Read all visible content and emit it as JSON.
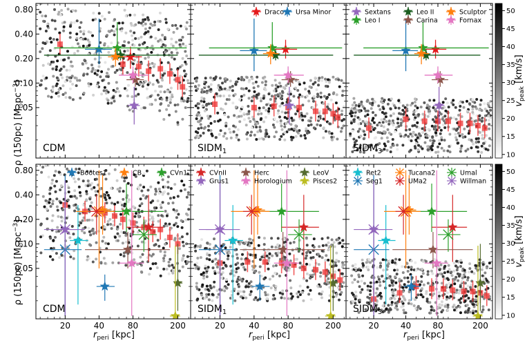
{
  "chart_data": {
    "type": "scatter",
    "title": "",
    "xlabel": "r_peri [kpc]",
    "ylabel": "ρ(150pc) [M⊙pc⁻³]",
    "x_axis": {
      "scale": "log",
      "range_kpc": [
        11,
        260
      ],
      "ticks": [
        20,
        40,
        80,
        200
      ]
    },
    "y_axis": {
      "scale": "log",
      "range": [
        0.012,
        0.95
      ],
      "ticks": [
        0.05,
        0.1,
        0.2,
        0.4,
        0.8
      ],
      "tick_labels": [
        "0.05",
        "0.10",
        "0.20",
        "0.40",
        "0.80"
      ]
    },
    "colorbar": {
      "label": "v_peak [km/s]",
      "range": [
        9,
        52
      ],
      "ticks": [
        10,
        15,
        20,
        25,
        30,
        35,
        40,
        45,
        50
      ]
    },
    "panel_labels": {
      "cdm": "CDM",
      "sidm1": "SIDM",
      "sidm1_sub": "1",
      "sidm3": "SIDM",
      "sidm3_sub": "3"
    },
    "axis_text": {
      "ylabel_main": "ρ (150pc) [M",
      "ylabel_sun": "⊙",
      "ylabel_unit": "pc",
      "ylabel_exp": "−3",
      "ylabel_close": "]",
      "xlabel_main": "r",
      "xlabel_sub": "peri",
      "xlabel_unit": " [kpc]",
      "cbar_main": "v",
      "cbar_sub": "peak",
      "cbar_unit": " [km/s]"
    },
    "legend_top": [
      "Draco",
      "Ursa Minor",
      "Sextans",
      "Leo I",
      "Leo II",
      "Carina",
      "Sculptor",
      "Fornax"
    ],
    "legend_bottom": [
      "Bootes1",
      "CB",
      "CVn1",
      "CVnII",
      "Grus1",
      "Herc",
      "Horologium",
      "LeoV",
      "Pisces2",
      "Ret2",
      "Seg1",
      "Tucana2",
      "UMa2",
      "Umal",
      "Willman"
    ],
    "colors": {
      "Draco": "#e41a1c",
      "Ursa Minor": "#1f77b4",
      "Sextans": "#9467bd",
      "Leo I": "#2ca02c",
      "Leo II": "#1b5e20",
      "Carina": "#8c564b",
      "Sculptor": "#ff7f0e",
      "Fornax": "#e377c2",
      "Bootes1": "#1f77b4",
      "CB": "#ff7f0e",
      "CVn1": "#2ca02c",
      "CVnII": "#d62728",
      "Grus1": "#9467bd",
      "Herc": "#8c564b",
      "Horologium": "#e377c2",
      "LeoV": "#556b2f",
      "Pisces2": "#bcbd22",
      "Ret2": "#17becf",
      "Seg1": "#1f77b4",
      "Tucana2": "#ff7f0e",
      "UMa2": "#d62728",
      "Umal": "#2ca02c",
      "Willman": "#9467bd",
      "model": "#ee3333"
    },
    "classical": {
      "Draco": {
        "x": [
          76,
          60,
          96
        ],
        "cdm": [
          0.21,
          0.15,
          0.28
        ],
        "sidm1": [
          0.26,
          0.2,
          0.34
        ],
        "sidm3": [
          0.26,
          0.2,
          0.34
        ],
        "marker": "star"
      },
      "Ursa Minor": {
        "x": [
          40,
          30,
          52
        ],
        "cdm": [
          0.26,
          0.17,
          0.62
        ],
        "sidm1": [
          0.25,
          0.14,
          0.62
        ],
        "sidm3": [
          0.25,
          0.14,
          0.62
        ],
        "marker": "star"
      },
      "Sextans": {
        "x": [
          82,
          72,
          92
        ],
        "cdm": [
          0.053,
          0.031,
          0.09
        ],
        "sidm1": [
          0.053,
          0.031,
          0.09
        ],
        "sidm3": [
          0.053,
          0.031,
          0.09
        ],
        "marker": "star"
      },
      "Leo I": {
        "x": [
          58,
          16,
          240
        ],
        "cdm": [
          0.27,
          0.22,
          0.56
        ],
        "sidm1": [
          0.27,
          0.22,
          0.56
        ],
        "sidm3": [
          0.27,
          0.22,
          0.56
        ],
        "marker": "star"
      },
      "Leo II": {
        "x": [
          62,
          13,
          200
        ],
        "cdm": [
          0.22,
          0.19,
          0.26
        ],
        "sidm1": [
          0.22,
          0.19,
          0.26
        ],
        "sidm3": [
          0.22,
          0.19,
          0.26
        ],
        "marker": "star"
      },
      "Carina": {
        "x": [
          84,
          70,
          100
        ],
        "cdm": [
          0.11,
          0.09,
          0.14
        ],
        "sidm1": [
          0.11,
          0.09,
          0.14
        ],
        "sidm3": [
          0.11,
          0.09,
          0.14
        ],
        "marker": "star"
      },
      "Sculptor": {
        "x": [
          56,
          48,
          66
        ],
        "cdm": [
          0.21,
          0.16,
          0.27
        ],
        "sidm1": [
          0.23,
          0.17,
          0.3
        ],
        "sidm3": [
          0.23,
          0.17,
          0.3
        ],
        "marker": "star"
      },
      "Fornax": {
        "x": [
          80,
          60,
          110
        ],
        "cdm": [
          0.125,
          0.1,
          0.16
        ],
        "sidm1": [
          0.125,
          0.1,
          0.16
        ],
        "sidm3": [
          0.125,
          0.1,
          0.16
        ],
        "marker": "star"
      }
    },
    "ultrafaint": {
      "Bootes1": {
        "x": [
          45,
          38,
          55
        ],
        "y": [
          0.03,
          0.02,
          0.042
        ],
        "marker": "star"
      },
      "CB": {
        "x": [
          43,
          36,
          50
        ],
        "y": [
          0.26,
          0.13,
          0.7
        ],
        "marker": "star"
      },
      "CVn1": {
        "x": [
          70,
          40,
          150
        ],
        "y": [
          0.25,
          0.14,
          0.55
        ],
        "marker": "star"
      },
      "CVnII": {
        "x": [
          110,
          70,
          150
        ],
        "y": [
          0.16,
          0.06,
          0.4
        ],
        "marker": "star"
      },
      "Grus1": {
        "x": [
          20,
          15,
          26
        ],
        "y": [
          0.15,
          0.013,
          0.6
        ],
        "marker": "star"
      },
      "Herc": {
        "x": [
          72,
          30,
          170
        ],
        "y": [
          0.085,
          0.05,
          0.14
        ],
        "marker": "star"
      },
      "Horologium": {
        "x": [
          78,
          60,
          100
        ],
        "y": [
          0.058,
          0.013,
          0.8
        ],
        "marker": "star"
      },
      "LeoV": {
        "x": [
          200,
          185,
          220
        ],
        "y": [
          0.033,
          0.015,
          0.1
        ],
        "marker": "star"
      },
      "Pisces2": {
        "x": [
          190,
          170,
          210
        ],
        "y": [
          0.013,
          0.013,
          0.095
        ],
        "marker": "star"
      },
      "Ret2": {
        "x": [
          26,
          22,
          32
        ],
        "y": [
          0.11,
          0.018,
          0.3
        ],
        "marker": "star"
      },
      "Seg1": {
        "x": [
          20,
          13,
          28
        ],
        "y": [
          0.085,
          0.013,
          0.7
        ],
        "marker": "x"
      },
      "Tucana2": {
        "x": [
          40,
          25,
          55
        ],
        "y": [
          0.25,
          0.05,
          0.8
        ],
        "marker": "x"
      },
      "UMa2": {
        "x": [
          38,
          32,
          44
        ],
        "y": [
          0.25,
          0.13,
          0.4
        ],
        "marker": "x"
      },
      "Umal": {
        "x": [
          100,
          80,
          130
        ],
        "y": [
          0.13,
          0.08,
          0.2
        ],
        "marker": "x"
      },
      "Willman": {
        "x": [
          20,
          13,
          30
        ],
        "y": [
          0.15,
          0.013,
          0.6
        ],
        "marker": "x"
      }
    },
    "model_points": {
      "top_cdm": {
        "x": [
          18,
          65,
          90,
          110,
          140,
          170,
          200,
          220
        ],
        "y": [
          0.3,
          0.17,
          0.16,
          0.14,
          0.15,
          0.13,
          0.11,
          0.09
        ]
      },
      "top_sidm1": {
        "x": [
          18,
          40,
          60,
          80,
          100,
          140,
          170,
          200,
          220
        ],
        "y": [
          0.055,
          0.05,
          0.052,
          0.05,
          0.05,
          0.045,
          0.045,
          0.042,
          0.038
        ]
      },
      "top_sidm3": {
        "x": [
          18,
          40,
          60,
          80,
          100,
          130,
          160,
          190,
          220
        ],
        "y": [
          0.028,
          0.036,
          0.034,
          0.034,
          0.034,
          0.032,
          0.032,
          0.03,
          0.028
        ]
      },
      "bot_cdm": {
        "x": [
          20,
          30,
          45,
          55,
          65,
          80,
          100,
          120,
          140,
          170,
          200
        ],
        "y": [
          0.3,
          0.25,
          0.24,
          0.22,
          0.2,
          0.18,
          0.16,
          0.14,
          0.15,
          0.12,
          0.1
        ]
      },
      "bot_sidm1": {
        "x": [
          20,
          35,
          50,
          70,
          90,
          110,
          140,
          170,
          200,
          230
        ],
        "y": [
          0.058,
          0.06,
          0.06,
          0.058,
          0.055,
          0.05,
          0.048,
          0.045,
          0.04,
          0.036
        ]
      },
      "bot_sidm3": {
        "x": [
          20,
          35,
          50,
          70,
          90,
          110,
          140,
          170,
          200,
          230
        ],
        "y": [
          0.021,
          0.025,
          0.03,
          0.028,
          0.028,
          0.027,
          0.026,
          0.026,
          0.025,
          0.023
        ]
      }
    },
    "subhalos": {
      "count_per_panel": 520,
      "x_range_kpc": [
        12,
        250
      ],
      "y_range": [
        0.02,
        0.8
      ],
      "note": "grey-scale scatter coloured by v_peak"
    }
  }
}
